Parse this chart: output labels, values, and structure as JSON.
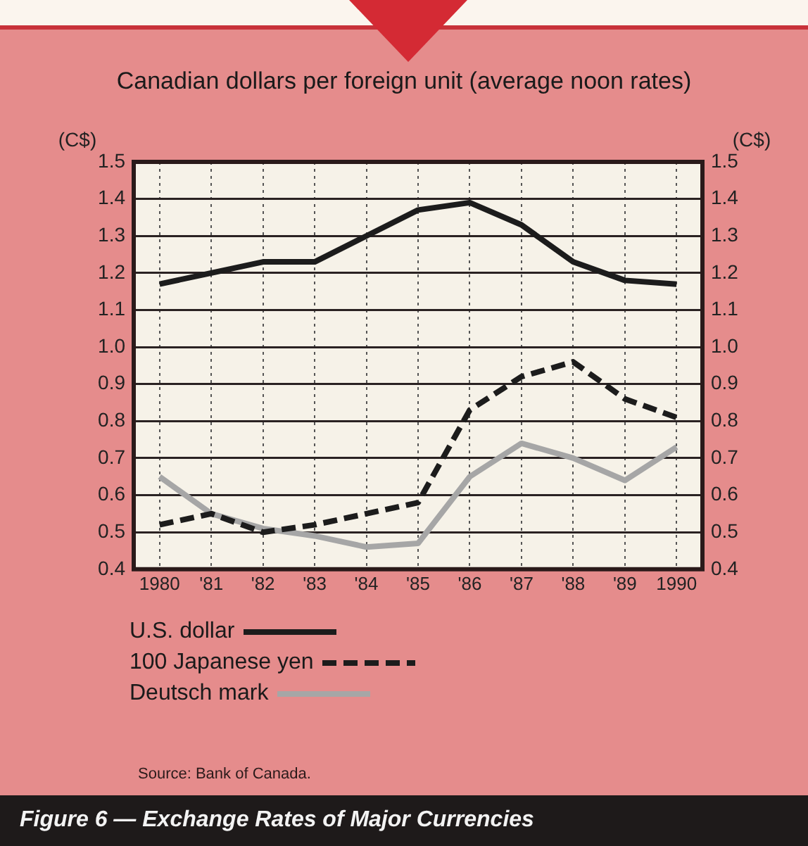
{
  "chart_data": {
    "type": "line",
    "title": "Canadian dollars per foreign unit (average noon rates)",
    "ylabel": "(C$)",
    "y2label": "(C$)",
    "categories": [
      "1980",
      "'81",
      "'82",
      "'83",
      "'84",
      "'85",
      "'86",
      "'87",
      "'88",
      "'89",
      "1990"
    ],
    "series": [
      {
        "name": "U.S. dollar",
        "color": "#1c1c1c",
        "line_style": "solid",
        "values": [
          1.17,
          1.2,
          1.23,
          1.23,
          1.3,
          1.37,
          1.39,
          1.33,
          1.23,
          1.18,
          1.17
        ]
      },
      {
        "name": "100 Japanese yen",
        "color": "#1c1c1c",
        "line_style": "dashed",
        "values": [
          0.52,
          0.55,
          0.5,
          0.52,
          0.55,
          0.58,
          0.83,
          0.92,
          0.96,
          0.86,
          0.81
        ]
      },
      {
        "name": "Deutsch mark",
        "color": "#a6a6a6",
        "line_style": "solid",
        "values": [
          0.65,
          0.55,
          0.51,
          0.49,
          0.46,
          0.47,
          0.65,
          0.74,
          0.7,
          0.64,
          0.73
        ]
      }
    ],
    "ylim": [
      0.4,
      1.5
    ],
    "yticks": [
      0.4,
      0.5,
      0.6,
      0.7,
      0.8,
      0.9,
      {
        "value": 1,
        "label": "1.0"
      },
      1.1,
      1.2,
      1.3,
      1.4,
      1.5
    ],
    "y2lim": [
      0.4,
      1.5
    ],
    "y2ticks": [
      0.4,
      0.5,
      0.6,
      0.7,
      0.8,
      0.9,
      {
        "value": 1,
        "label": "1.0"
      },
      1.1,
      1.2,
      1.3,
      1.4,
      1.5
    ],
    "grid": true,
    "legend": "bottom",
    "marker": "none",
    "annotations": [
      "Source: Bank of Canada.",
      "Figure 6 — Exchange Rates of Major Currencies"
    ]
  }
}
